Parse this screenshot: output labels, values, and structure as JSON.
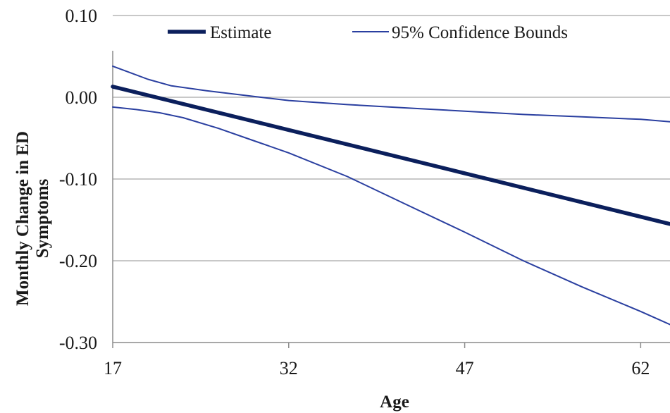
{
  "chart_data": {
    "type": "line",
    "xlabel": "Age",
    "ylabel_lines": [
      "Monthly Change in ED",
      "Symptoms"
    ],
    "x_ticks": [
      "17",
      "32",
      "47",
      "62"
    ],
    "y_ticks": [
      "0.10",
      "0.00",
      "-0.10",
      "-0.20",
      "-0.30"
    ],
    "xlim": [
      17,
      64.5
    ],
    "ylim": [
      -0.3,
      0.1
    ],
    "grid": "horizontal",
    "legend_position": "top",
    "series": [
      {
        "name": "Estimate",
        "color": "#0b1f5c",
        "x": [
          17,
          32,
          47,
          64.5
        ],
        "y": [
          0.013,
          -0.04,
          -0.093,
          -0.155
        ]
      },
      {
        "name": "95% Confidence Bounds",
        "color": "#2a3fa0",
        "x": [
          17,
          18.5,
          20,
          22,
          25,
          29,
          32,
          37,
          42,
          47,
          52,
          57,
          62,
          64.5
        ],
        "y": [
          0.038,
          0.03,
          0.022,
          0.014,
          0.008,
          0.001,
          -0.004,
          -0.009,
          -0.013,
          -0.017,
          -0.021,
          -0.024,
          -0.027,
          -0.03
        ]
      },
      {
        "name": "",
        "color": "#2a3fa0",
        "x": [
          17,
          19,
          21,
          23,
          26,
          29,
          32,
          37,
          42,
          47,
          52,
          57,
          62,
          64.5
        ],
        "y": [
          -0.012,
          -0.015,
          -0.019,
          -0.025,
          -0.038,
          -0.053,
          -0.068,
          -0.097,
          -0.131,
          -0.165,
          -0.2,
          -0.232,
          -0.262,
          -0.278
        ]
      }
    ]
  }
}
